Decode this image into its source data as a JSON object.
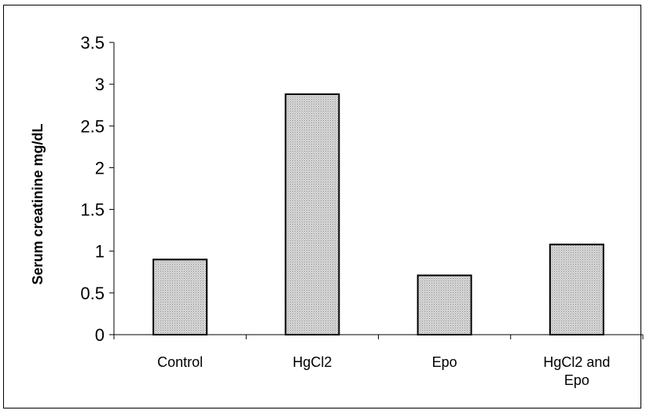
{
  "chart_data": {
    "type": "bar",
    "title": "",
    "xlabel": "",
    "ylabel": "Serum creatinine mg/dL",
    "categories": [
      [
        "Control"
      ],
      [
        "HgCl2"
      ],
      [
        "Epo"
      ],
      [
        "HgCl2 and",
        "Epo"
      ]
    ],
    "values": [
      0.9,
      2.88,
      0.71,
      1.08
    ],
    "ylim": [
      0,
      3.5
    ],
    "yticks": [
      "0",
      "0.5",
      "1",
      "1.5",
      "2",
      "2.5",
      "3",
      "3.5"
    ],
    "grid": false,
    "legend": "none",
    "bar_fill": "#c8c8c8",
    "bar_stroke": "#000000"
  }
}
